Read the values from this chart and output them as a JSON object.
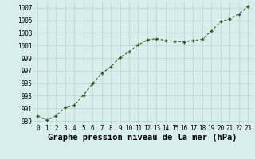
{
  "x": [
    0,
    1,
    2,
    3,
    4,
    5,
    6,
    7,
    8,
    9,
    10,
    11,
    12,
    13,
    14,
    15,
    16,
    17,
    18,
    19,
    20,
    21,
    22,
    23
  ],
  "y": [
    989.8,
    989.1,
    989.8,
    991.2,
    991.5,
    993.1,
    994.9,
    996.6,
    997.6,
    999.1,
    1000.0,
    1001.1,
    1001.9,
    1002.1,
    1001.8,
    1001.7,
    1001.6,
    1001.8,
    1002.0,
    1003.3,
    1004.8,
    1005.2,
    1006.0,
    1007.2
  ],
  "xlabel": "Graphe pression niveau de la mer (hPa)",
  "ylim": [
    988.5,
    1008.0
  ],
  "yticks": [
    989,
    991,
    993,
    995,
    997,
    999,
    1001,
    1003,
    1005,
    1007
  ],
  "xticks": [
    0,
    1,
    2,
    3,
    4,
    5,
    6,
    7,
    8,
    9,
    10,
    11,
    12,
    13,
    14,
    15,
    16,
    17,
    18,
    19,
    20,
    21,
    22,
    23
  ],
  "line_color": "#2d5a1b",
  "marker_color": "#2d5a1b",
  "bg_color": "#d8eeed",
  "grid_color": "#b8d4d0",
  "xlabel_fontsize": 7.5,
  "tick_fontsize": 5.5
}
